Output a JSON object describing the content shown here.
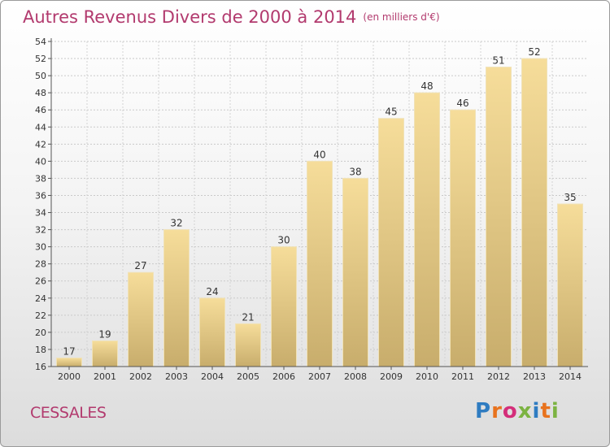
{
  "title": "Autres Revenus Divers de 2000 à 2014",
  "title_unit": "(en milliers d'€)",
  "commune": "CESSALES",
  "logo": {
    "text": "Proxiti",
    "colors": [
      "#2f7cc1",
      "#e8731e",
      "#d42e7a",
      "#7cb342",
      "#2f7cc1",
      "#e8731e",
      "#7cb342"
    ]
  },
  "colors": {
    "title": "#b23a6e",
    "bar_light": "#f6dd9a",
    "bar_dark": "#c8ad6c"
  },
  "chart_data": {
    "type": "bar",
    "title": "Autres Revenus Divers de 2000 à 2014",
    "subtitle": "(en milliers d'€)",
    "categories": [
      "2000",
      "2001",
      "2002",
      "2003",
      "2004",
      "2005",
      "2006",
      "2007",
      "2008",
      "2009",
      "2010",
      "2011",
      "2012",
      "2013",
      "2014"
    ],
    "values": [
      17,
      19,
      27,
      32,
      24,
      21,
      30,
      40,
      38,
      45,
      48,
      46,
      51,
      52,
      35
    ],
    "ylim": [
      16,
      54
    ],
    "yticks": [
      16,
      18,
      20,
      22,
      24,
      26,
      28,
      30,
      32,
      34,
      36,
      38,
      40,
      42,
      44,
      46,
      48,
      50,
      52,
      54
    ],
    "grid": true,
    "data_labels": true,
    "legend": "none"
  }
}
